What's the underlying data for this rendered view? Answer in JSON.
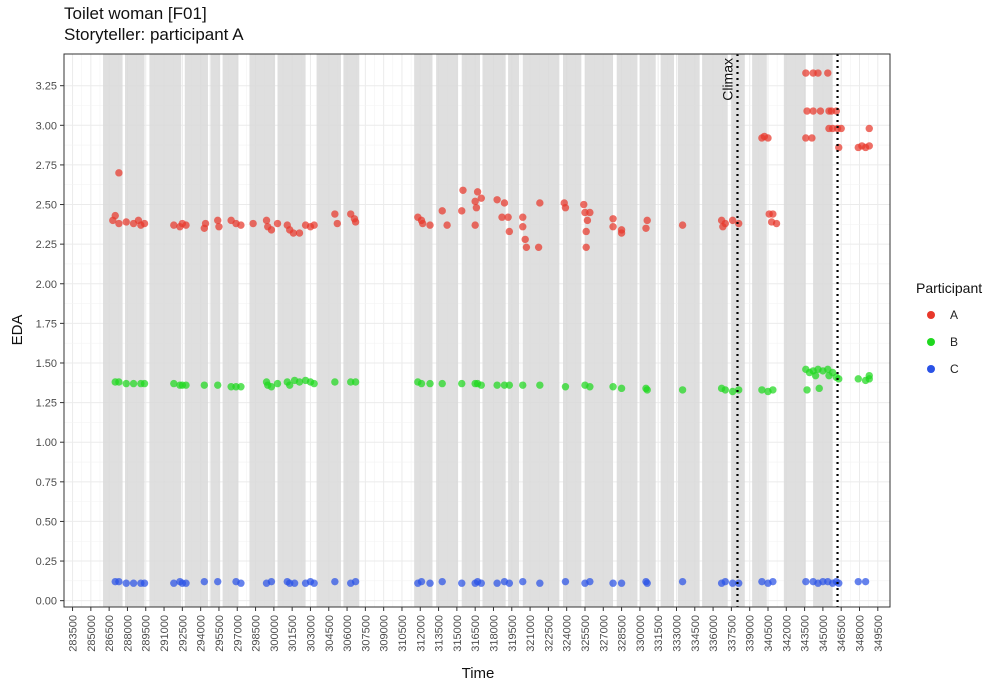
{
  "chart_data": {
    "type": "scatter",
    "title": "Toilet woman [F01]",
    "subtitle": "Storyteller: participant A",
    "xlabel": "Time",
    "ylabel": "EDA",
    "xlim": [
      282800,
      350500
    ],
    "ylim": [
      -0.04,
      3.45
    ],
    "x_ticks": [
      283500,
      285000,
      286500,
      288000,
      289500,
      291000,
      292500,
      294000,
      295500,
      297000,
      298500,
      300000,
      301500,
      303000,
      304500,
      306000,
      307500,
      309000,
      310500,
      312000,
      313500,
      315000,
      316500,
      318000,
      319500,
      321000,
      322500,
      324000,
      325500,
      327000,
      328500,
      330000,
      331500,
      333000,
      334500,
      336000,
      337500,
      339000,
      340500,
      342000,
      343500,
      345000,
      346500,
      348000,
      349500
    ],
    "y_ticks": [
      "0.00",
      "0.25",
      "0.50",
      "0.75",
      "1.00",
      "1.25",
      "1.50",
      "1.75",
      "2.00",
      "2.25",
      "2.50",
      "2.75",
      "3.00",
      "3.25"
    ],
    "grid": true,
    "legend_position": "right",
    "legend_title": "Participant",
    "colors": {
      "A": "#e8382b",
      "B": "#1fd81f",
      "C": "#2a52e6",
      "shade": "#d9d9d9",
      "panel": "#ffffff",
      "grid": "#ebebeb"
    },
    "shaded_intervals": [
      [
        286000,
        287600
      ],
      [
        287800,
        289400
      ],
      [
        289800,
        292400
      ],
      [
        292700,
        294600
      ],
      [
        294800,
        295600
      ],
      [
        295800,
        297100
      ],
      [
        298000,
        300100
      ],
      [
        300300,
        302600
      ],
      [
        303500,
        305500
      ],
      [
        305700,
        307000
      ],
      [
        311500,
        313000
      ],
      [
        313300,
        315100
      ],
      [
        315400,
        316900
      ],
      [
        317100,
        319000
      ],
      [
        319200,
        320100
      ],
      [
        320400,
        323400
      ],
      [
        323700,
        325200
      ],
      [
        325500,
        327800
      ],
      [
        328100,
        329800
      ],
      [
        330000,
        331300
      ],
      [
        331700,
        332800
      ],
      [
        333100,
        334900
      ],
      [
        335100,
        337200
      ],
      [
        337500,
        338600
      ],
      [
        339200,
        340400
      ],
      [
        341800,
        343600
      ],
      [
        344200,
        345800
      ]
    ],
    "vlines": [
      338000,
      346200
    ],
    "annotations": [
      {
        "text": "Climax",
        "x": 338000
      }
    ],
    "series": [
      {
        "name": "A",
        "points": [
          [
            287300,
            2.7
          ],
          [
            287000,
            2.43
          ],
          [
            286800,
            2.4
          ],
          [
            287300,
            2.38
          ],
          [
            287900,
            2.39
          ],
          [
            288500,
            2.38
          ],
          [
            288900,
            2.4
          ],
          [
            289100,
            2.37
          ],
          [
            289400,
            2.38
          ],
          [
            291800,
            2.37
          ],
          [
            292300,
            2.36
          ],
          [
            292500,
            2.38
          ],
          [
            292800,
            2.37
          ],
          [
            294300,
            2.35
          ],
          [
            294400,
            2.38
          ],
          [
            295400,
            2.4
          ],
          [
            295500,
            2.36
          ],
          [
            296500,
            2.4
          ],
          [
            296900,
            2.38
          ],
          [
            297300,
            2.37
          ],
          [
            298300,
            2.38
          ],
          [
            299400,
            2.4
          ],
          [
            299500,
            2.36
          ],
          [
            299800,
            2.34
          ],
          [
            300300,
            2.38
          ],
          [
            301100,
            2.37
          ],
          [
            301300,
            2.34
          ],
          [
            301600,
            2.32
          ],
          [
            302100,
            2.32
          ],
          [
            302600,
            2.37
          ],
          [
            303000,
            2.36
          ],
          [
            303300,
            2.37
          ],
          [
            305000,
            2.44
          ],
          [
            305200,
            2.38
          ],
          [
            306300,
            2.44
          ],
          [
            306600,
            2.41
          ],
          [
            306700,
            2.39
          ],
          [
            311800,
            2.42
          ],
          [
            312100,
            2.4
          ],
          [
            312200,
            2.38
          ],
          [
            312800,
            2.37
          ],
          [
            313800,
            2.46
          ],
          [
            314200,
            2.37
          ],
          [
            315500,
            2.59
          ],
          [
            315400,
            2.46
          ],
          [
            316700,
            2.58
          ],
          [
            316500,
            2.52
          ],
          [
            316600,
            2.48
          ],
          [
            316500,
            2.37
          ],
          [
            317000,
            2.54
          ],
          [
            318300,
            2.53
          ],
          [
            318700,
            2.42
          ],
          [
            318900,
            2.51
          ],
          [
            319200,
            2.42
          ],
          [
            319300,
            2.33
          ],
          [
            320400,
            2.42
          ],
          [
            320400,
            2.36
          ],
          [
            320600,
            2.28
          ],
          [
            320700,
            2.23
          ],
          [
            321700,
            2.23
          ],
          [
            321800,
            2.51
          ],
          [
            323800,
            2.51
          ],
          [
            323900,
            2.48
          ],
          [
            325400,
            2.5
          ],
          [
            325500,
            2.45
          ],
          [
            325700,
            2.4
          ],
          [
            325600,
            2.33
          ],
          [
            325600,
            2.23
          ],
          [
            325900,
            2.45
          ],
          [
            327800,
            2.41
          ],
          [
            327800,
            2.36
          ],
          [
            328500,
            2.34
          ],
          [
            328500,
            2.32
          ],
          [
            330600,
            2.4
          ],
          [
            330500,
            2.35
          ],
          [
            333500,
            2.37
          ],
          [
            336700,
            2.4
          ],
          [
            336800,
            2.36
          ],
          [
            337000,
            2.38
          ],
          [
            337600,
            2.4
          ],
          [
            338100,
            2.38
          ],
          [
            340000,
            2.92
          ],
          [
            340200,
            2.93
          ],
          [
            340500,
            2.92
          ],
          [
            340600,
            2.44
          ],
          [
            340900,
            2.44
          ],
          [
            340800,
            2.39
          ],
          [
            341200,
            2.38
          ],
          [
            343600,
            3.33
          ],
          [
            344200,
            3.33
          ],
          [
            344600,
            3.33
          ],
          [
            345400,
            3.33
          ],
          [
            343700,
            3.09
          ],
          [
            344200,
            3.09
          ],
          [
            344800,
            3.09
          ],
          [
            345500,
            3.09
          ],
          [
            345700,
            3.09
          ],
          [
            346100,
            3.09
          ],
          [
            343600,
            2.92
          ],
          [
            344100,
            2.92
          ],
          [
            345500,
            2.98
          ],
          [
            345800,
            2.98
          ],
          [
            346200,
            2.98
          ],
          [
            346500,
            2.98
          ],
          [
            346300,
            2.86
          ],
          [
            347900,
            2.86
          ],
          [
            348200,
            2.87
          ],
          [
            348500,
            2.86
          ],
          [
            348800,
            2.87
          ],
          [
            348800,
            2.98
          ]
        ]
      },
      {
        "name": "B",
        "points": [
          [
            287000,
            1.38
          ],
          [
            287300,
            1.38
          ],
          [
            287900,
            1.37
          ],
          [
            288500,
            1.37
          ],
          [
            289100,
            1.37
          ],
          [
            289400,
            1.37
          ],
          [
            291800,
            1.37
          ],
          [
            292300,
            1.36
          ],
          [
            292500,
            1.36
          ],
          [
            292800,
            1.36
          ],
          [
            294300,
            1.36
          ],
          [
            295400,
            1.36
          ],
          [
            296500,
            1.35
          ],
          [
            296900,
            1.35
          ],
          [
            297300,
            1.35
          ],
          [
            299400,
            1.38
          ],
          [
            299500,
            1.36
          ],
          [
            299800,
            1.35
          ],
          [
            300300,
            1.37
          ],
          [
            301100,
            1.38
          ],
          [
            301300,
            1.36
          ],
          [
            301700,
            1.39
          ],
          [
            302100,
            1.38
          ],
          [
            302600,
            1.39
          ],
          [
            303000,
            1.38
          ],
          [
            303300,
            1.37
          ],
          [
            305000,
            1.38
          ],
          [
            306300,
            1.38
          ],
          [
            306700,
            1.38
          ],
          [
            311800,
            1.38
          ],
          [
            312100,
            1.37
          ],
          [
            312800,
            1.37
          ],
          [
            313800,
            1.37
          ],
          [
            315400,
            1.37
          ],
          [
            316500,
            1.37
          ],
          [
            316700,
            1.37
          ],
          [
            317000,
            1.36
          ],
          [
            318300,
            1.36
          ],
          [
            318900,
            1.36
          ],
          [
            319300,
            1.36
          ],
          [
            320400,
            1.36
          ],
          [
            321800,
            1.36
          ],
          [
            323900,
            1.35
          ],
          [
            325500,
            1.36
          ],
          [
            325900,
            1.35
          ],
          [
            327800,
            1.35
          ],
          [
            328500,
            1.34
          ],
          [
            330500,
            1.34
          ],
          [
            330600,
            1.33
          ],
          [
            333500,
            1.33
          ],
          [
            336700,
            1.34
          ],
          [
            337000,
            1.33
          ],
          [
            337600,
            1.32
          ],
          [
            338100,
            1.33
          ],
          [
            340000,
            1.33
          ],
          [
            340500,
            1.32
          ],
          [
            340900,
            1.33
          ],
          [
            343600,
            1.46
          ],
          [
            343900,
            1.44
          ],
          [
            344200,
            1.45
          ],
          [
            344600,
            1.46
          ],
          [
            344400,
            1.42
          ],
          [
            345000,
            1.45
          ],
          [
            345400,
            1.46
          ],
          [
            345500,
            1.42
          ],
          [
            345800,
            1.44
          ],
          [
            346100,
            1.41
          ],
          [
            346300,
            1.4
          ],
          [
            343700,
            1.33
          ],
          [
            344700,
            1.34
          ],
          [
            347900,
            1.4
          ],
          [
            348500,
            1.39
          ],
          [
            348800,
            1.4
          ],
          [
            348800,
            1.42
          ]
        ]
      },
      {
        "name": "C",
        "points": [
          [
            287000,
            0.12
          ],
          [
            287300,
            0.12
          ],
          [
            287900,
            0.11
          ],
          [
            288500,
            0.11
          ],
          [
            289100,
            0.11
          ],
          [
            289400,
            0.11
          ],
          [
            291800,
            0.11
          ],
          [
            292300,
            0.12
          ],
          [
            292500,
            0.11
          ],
          [
            292800,
            0.11
          ],
          [
            294300,
            0.12
          ],
          [
            295400,
            0.12
          ],
          [
            296900,
            0.12
          ],
          [
            297300,
            0.11
          ],
          [
            299400,
            0.11
          ],
          [
            299800,
            0.12
          ],
          [
            301100,
            0.12
          ],
          [
            301300,
            0.11
          ],
          [
            301700,
            0.11
          ],
          [
            302600,
            0.11
          ],
          [
            303000,
            0.12
          ],
          [
            303300,
            0.11
          ],
          [
            305000,
            0.12
          ],
          [
            306300,
            0.11
          ],
          [
            306700,
            0.12
          ],
          [
            311800,
            0.11
          ],
          [
            312100,
            0.12
          ],
          [
            312800,
            0.11
          ],
          [
            313800,
            0.12
          ],
          [
            315400,
            0.11
          ],
          [
            316500,
            0.11
          ],
          [
            316700,
            0.12
          ],
          [
            317000,
            0.11
          ],
          [
            318300,
            0.11
          ],
          [
            318900,
            0.12
          ],
          [
            319300,
            0.11
          ],
          [
            320400,
            0.12
          ],
          [
            321800,
            0.11
          ],
          [
            323900,
            0.12
          ],
          [
            325500,
            0.11
          ],
          [
            325900,
            0.12
          ],
          [
            327800,
            0.11
          ],
          [
            328500,
            0.11
          ],
          [
            330500,
            0.12
          ],
          [
            330600,
            0.11
          ],
          [
            333500,
            0.12
          ],
          [
            336700,
            0.11
          ],
          [
            337000,
            0.12
          ],
          [
            337600,
            0.11
          ],
          [
            338100,
            0.11
          ],
          [
            340000,
            0.12
          ],
          [
            340500,
            0.11
          ],
          [
            340900,
            0.12
          ],
          [
            343600,
            0.12
          ],
          [
            344200,
            0.12
          ],
          [
            344600,
            0.11
          ],
          [
            345000,
            0.12
          ],
          [
            345400,
            0.12
          ],
          [
            345800,
            0.11
          ],
          [
            346100,
            0.12
          ],
          [
            346300,
            0.11
          ],
          [
            347900,
            0.12
          ],
          [
            348500,
            0.12
          ]
        ]
      }
    ]
  }
}
